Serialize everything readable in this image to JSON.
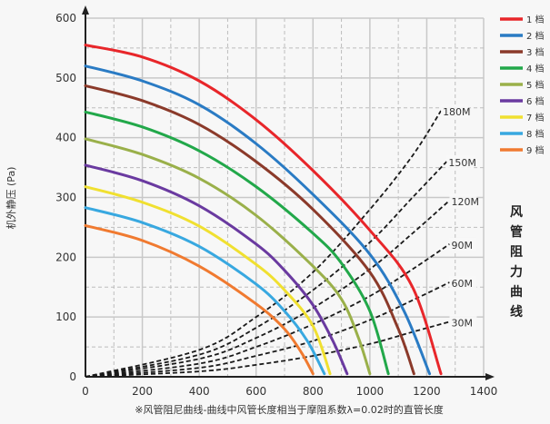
{
  "chart_data": {
    "type": "line",
    "ylabel": "机外静压 (Pa)",
    "xlabel": "",
    "note": "※风管阻尼曲线-曲线中风管长度相当于摩阻系数λ=0.02时的直管长度",
    "side_label": "风管阻力曲线",
    "xlim": [
      0,
      1400
    ],
    "ylim": [
      0,
      600
    ],
    "x_ticks": [
      "0",
      "200",
      "400",
      "600",
      "800",
      "1000",
      "1200",
      "1400"
    ],
    "y_ticks": [
      "0",
      "100",
      "200",
      "300",
      "400",
      "500",
      "600"
    ],
    "grid": true,
    "legend_position": "right",
    "series": [
      {
        "name": "1 档",
        "color": "#e8262a",
        "values": [
          [
            0,
            555
          ],
          [
            200,
            535
          ],
          [
            400,
            495
          ],
          [
            600,
            430
          ],
          [
            800,
            345
          ],
          [
            1000,
            245
          ],
          [
            1150,
            150
          ],
          [
            1250,
            5
          ]
        ]
      },
      {
        "name": "2 档",
        "color": "#2a7bc4",
        "values": [
          [
            0,
            520
          ],
          [
            200,
            495
          ],
          [
            400,
            455
          ],
          [
            600,
            390
          ],
          [
            800,
            305
          ],
          [
            1000,
            205
          ],
          [
            1120,
            110
          ],
          [
            1210,
            5
          ]
        ]
      },
      {
        "name": "3 档",
        "color": "#8b3a2a",
        "values": [
          [
            0,
            487
          ],
          [
            200,
            462
          ],
          [
            400,
            422
          ],
          [
            600,
            360
          ],
          [
            800,
            280
          ],
          [
            1000,
            175
          ],
          [
            1100,
            80
          ],
          [
            1155,
            5
          ]
        ]
      },
      {
        "name": "4 档",
        "color": "#22a84a",
        "values": [
          [
            0,
            443
          ],
          [
            200,
            418
          ],
          [
            400,
            378
          ],
          [
            600,
            318
          ],
          [
            800,
            240
          ],
          [
            900,
            190
          ],
          [
            1000,
            110
          ],
          [
            1065,
            5
          ]
        ]
      },
      {
        "name": "5 档",
        "color": "#9ab04a",
        "values": [
          [
            0,
            398
          ],
          [
            200,
            372
          ],
          [
            400,
            332
          ],
          [
            600,
            270
          ],
          [
            800,
            185
          ],
          [
            900,
            130
          ],
          [
            960,
            65
          ],
          [
            1000,
            5
          ]
        ]
      },
      {
        "name": "6 档",
        "color": "#6a3aa0",
        "values": [
          [
            0,
            354
          ],
          [
            200,
            328
          ],
          [
            400,
            286
          ],
          [
            600,
            222
          ],
          [
            700,
            178
          ],
          [
            800,
            120
          ],
          [
            870,
            60
          ],
          [
            920,
            5
          ]
        ]
      },
      {
        "name": "7 档",
        "color": "#f0e030",
        "values": [
          [
            0,
            318
          ],
          [
            200,
            292
          ],
          [
            400,
            252
          ],
          [
            600,
            188
          ],
          [
            700,
            145
          ],
          [
            800,
            85
          ],
          [
            860,
            5
          ]
        ]
      },
      {
        "name": "8 档",
        "color": "#38a8e0",
        "values": [
          [
            0,
            283
          ],
          [
            200,
            258
          ],
          [
            400,
            218
          ],
          [
            600,
            155
          ],
          [
            700,
            110
          ],
          [
            780,
            60
          ],
          [
            840,
            5
          ]
        ]
      },
      {
        "name": "9 档",
        "color": "#f07a30",
        "values": [
          [
            0,
            253
          ],
          [
            200,
            228
          ],
          [
            400,
            185
          ],
          [
            600,
            122
          ],
          [
            700,
            80
          ],
          [
            760,
            40
          ],
          [
            800,
            5
          ]
        ]
      }
    ],
    "duct_curves": [
      {
        "label": "180M",
        "values": [
          [
            0,
            0
          ],
          [
            400,
            45
          ],
          [
            600,
            100
          ],
          [
            800,
            175
          ],
          [
            1000,
            280
          ],
          [
            1150,
            370
          ],
          [
            1250,
            445
          ]
        ]
      },
      {
        "label": "150M",
        "values": [
          [
            0,
            0
          ],
          [
            400,
            37
          ],
          [
            600,
            82
          ],
          [
            800,
            145
          ],
          [
            1000,
            225
          ],
          [
            1150,
            300
          ],
          [
            1270,
            360
          ]
        ]
      },
      {
        "label": "120M",
        "values": [
          [
            0,
            0
          ],
          [
            400,
            30
          ],
          [
            600,
            65
          ],
          [
            800,
            115
          ],
          [
            1000,
            180
          ],
          [
            1150,
            240
          ],
          [
            1280,
            295
          ]
        ]
      },
      {
        "label": "90M",
        "values": [
          [
            0,
            0
          ],
          [
            400,
            22
          ],
          [
            600,
            50
          ],
          [
            800,
            88
          ],
          [
            1000,
            135
          ],
          [
            1150,
            180
          ],
          [
            1280,
            222
          ]
        ]
      },
      {
        "label": "60M",
        "values": [
          [
            0,
            0
          ],
          [
            400,
            15
          ],
          [
            600,
            35
          ],
          [
            800,
            60
          ],
          [
            1000,
            95
          ],
          [
            1150,
            128
          ],
          [
            1280,
            158
          ]
        ]
      },
      {
        "label": "30M",
        "values": [
          [
            0,
            0
          ],
          [
            400,
            9
          ],
          [
            600,
            20
          ],
          [
            800,
            35
          ],
          [
            1000,
            55
          ],
          [
            1150,
            75
          ],
          [
            1280,
            92
          ]
        ]
      }
    ]
  }
}
